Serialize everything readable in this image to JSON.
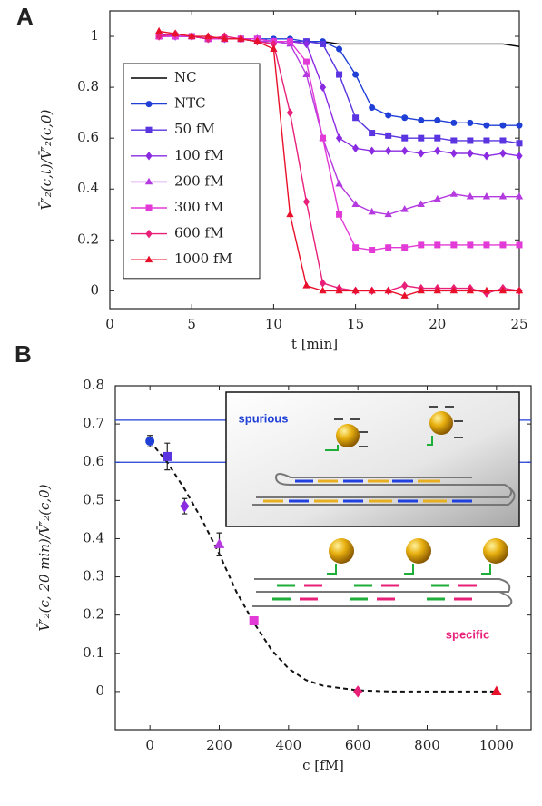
{
  "chart_data": [
    {
      "type": "line",
      "panel": "A",
      "y_label": "V̄′₂(c,t)/V̄′₂(c,0)",
      "x_label": "t [min]",
      "x": [
        3,
        4,
        5,
        6,
        7,
        8,
        9,
        10,
        11,
        12,
        13,
        14,
        15,
        16,
        17,
        18,
        19,
        20,
        21,
        22,
        23,
        24,
        25
      ],
      "xlim": [
        0,
        25
      ],
      "xticks": [
        0,
        5,
        10,
        15,
        20,
        25
      ],
      "ylim": [
        -0.07,
        1.1
      ],
      "yticks": [
        0,
        0.2,
        0.4,
        0.6,
        0.8,
        1
      ],
      "legend": "left",
      "series": [
        {
          "name": "NC",
          "color": "#000000",
          "marker": "none",
          "values": [
            1.01,
            1.0,
            1.0,
            0.99,
            0.99,
            0.99,
            0.98,
            0.98,
            0.98,
            0.98,
            0.98,
            0.97,
            0.97,
            0.97,
            0.97,
            0.97,
            0.97,
            0.97,
            0.97,
            0.97,
            0.97,
            0.97,
            0.96
          ]
        },
        {
          "name": "NTC",
          "color": "#1f3fd6",
          "marker": "circle",
          "values": [
            1.01,
            1.0,
            1.0,
            0.99,
            0.99,
            0.99,
            0.99,
            0.99,
            0.99,
            0.98,
            0.98,
            0.95,
            0.85,
            0.72,
            0.69,
            0.68,
            0.67,
            0.67,
            0.66,
            0.66,
            0.65,
            0.65,
            0.65
          ]
        },
        {
          "name": "50 fM",
          "color": "#5a35e0",
          "marker": "square",
          "values": [
            1.0,
            1.0,
            1.0,
            0.99,
            0.99,
            0.99,
            0.99,
            0.98,
            0.98,
            0.98,
            0.97,
            0.85,
            0.68,
            0.62,
            0.61,
            0.6,
            0.6,
            0.6,
            0.59,
            0.59,
            0.59,
            0.59,
            0.58
          ]
        },
        {
          "name": "100 fM",
          "color": "#8a2be2",
          "marker": "diamond",
          "values": [
            1.01,
            1.0,
            1.0,
            0.99,
            0.99,
            0.99,
            0.99,
            0.98,
            0.98,
            0.97,
            0.8,
            0.6,
            0.56,
            0.55,
            0.55,
            0.55,
            0.54,
            0.55,
            0.54,
            0.54,
            0.53,
            0.54,
            0.53
          ]
        },
        {
          "name": "200 fM",
          "color": "#b43ae0",
          "marker": "triangle",
          "values": [
            1.0,
            1.0,
            1.0,
            0.99,
            0.99,
            0.99,
            0.98,
            0.98,
            0.97,
            0.85,
            0.6,
            0.42,
            0.34,
            0.31,
            0.3,
            0.32,
            0.34,
            0.36,
            0.38,
            0.37,
            0.37,
            0.37,
            0.37
          ]
        },
        {
          "name": "300 fM",
          "color": "#e23ad6",
          "marker": "square",
          "values": [
            1.0,
            1.0,
            1.0,
            0.99,
            0.99,
            0.99,
            0.99,
            0.98,
            0.98,
            0.9,
            0.6,
            0.3,
            0.17,
            0.16,
            0.17,
            0.17,
            0.18,
            0.18,
            0.18,
            0.18,
            0.18,
            0.18,
            0.18
          ]
        },
        {
          "name": "600 fM",
          "color": "#e8207a",
          "marker": "diamond",
          "values": [
            1.0,
            1.01,
            1.0,
            0.99,
            1.0,
            0.99,
            0.98,
            0.97,
            0.7,
            0.35,
            0.03,
            0.01,
            0.0,
            0.0,
            0.0,
            0.02,
            0.01,
            0.01,
            0.01,
            0.01,
            -0.01,
            0.01,
            0.0
          ]
        },
        {
          "name": "1000 fM",
          "color": "#e8102a",
          "marker": "triangle",
          "values": [
            1.02,
            1.01,
            1.0,
            1.0,
            0.99,
            0.99,
            0.98,
            0.95,
            0.3,
            0.02,
            0.0,
            0.0,
            0.0,
            0.0,
            0.0,
            -0.02,
            0.0,
            0.0,
            0.0,
            0.0,
            0.0,
            0.0,
            0.0
          ]
        }
      ]
    },
    {
      "type": "scatter",
      "panel": "B",
      "y_label": "V̄′₂(c, 20 min)/V̄′₂(c,0)",
      "x_label": "c [fM]",
      "xlim": [
        -100,
        1100
      ],
      "xticks": [
        0,
        200,
        400,
        600,
        800,
        1000
      ],
      "ylim": [
        -0.1,
        0.8
      ],
      "yticks": [
        0,
        0.1,
        0.2,
        0.3,
        0.4,
        0.5,
        0.6,
        0.7,
        0.8
      ],
      "x": [
        0,
        50,
        100,
        200,
        300,
        600,
        1000
      ],
      "values": [
        0.655,
        0.615,
        0.485,
        0.385,
        0.185,
        0.0,
        0.0
      ],
      "errors": [
        0.015,
        0.035,
        0.02,
        0.03,
        0.01,
        0,
        0
      ],
      "colors": [
        "#1f3fd6",
        "#5a35e0",
        "#8a2be2",
        "#b43ae0",
        "#e23ad6",
        "#e8207a",
        "#e8102a"
      ],
      "markers": [
        "circle",
        "square",
        "diamond",
        "triangle",
        "square",
        "diamond",
        "triangle"
      ],
      "hlines": [
        0.71,
        0.6
      ],
      "hline_color": "#1f3fd6",
      "fit": {
        "x": [
          0,
          50,
          100,
          150,
          200,
          250,
          300,
          350,
          400,
          450,
          500,
          600,
          700,
          1000
        ],
        "y": [
          0.655,
          0.6,
          0.53,
          0.45,
          0.36,
          0.26,
          0.18,
          0.11,
          0.06,
          0.03,
          0.015,
          0.003,
          0,
          0
        ]
      },
      "annotations": [
        {
          "text": "spurious",
          "color": "#1f3fd6"
        },
        {
          "text": "specific",
          "color": "#e8207a"
        }
      ]
    }
  ]
}
